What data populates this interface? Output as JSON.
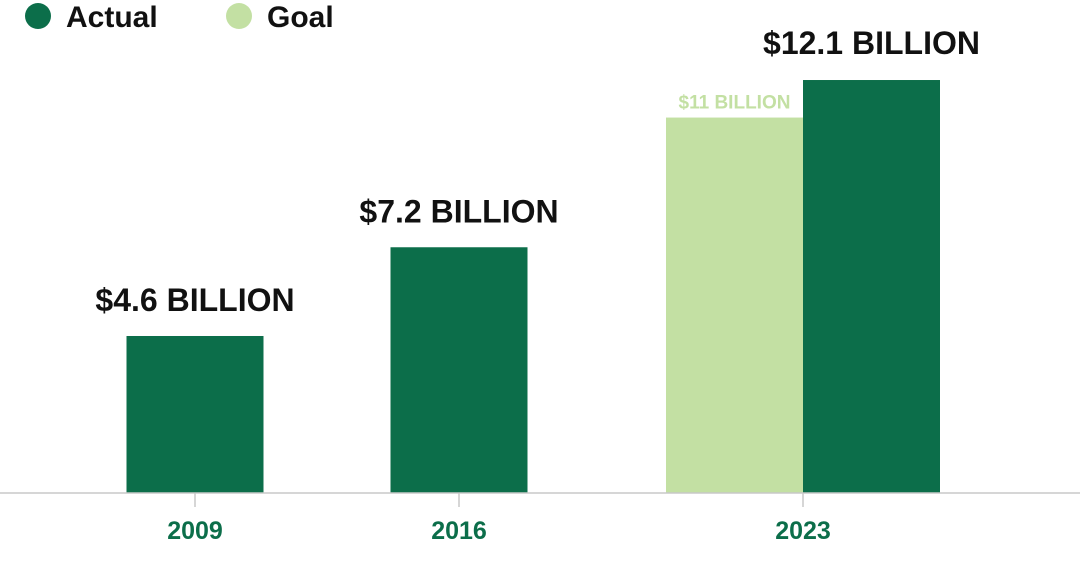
{
  "legend": {
    "actual_label": "Actual",
    "goal_label": "Goal"
  },
  "colors": {
    "actual": "#0c6e4a",
    "goal": "#c3e0a3",
    "tick_text": "#0c6e4a",
    "axis": "#c8c8c8"
  },
  "chart_data": {
    "type": "bar",
    "categories": [
      "2009",
      "2016",
      "2023"
    ],
    "series": [
      {
        "name": "Actual",
        "values": [
          4.6,
          7.2,
          12.1
        ],
        "labels": [
          "$4.6 BILLION",
          "$7.2 BILLION",
          "$12.1 BILLION"
        ]
      },
      {
        "name": "Goal",
        "values": [
          null,
          null,
          11
        ],
        "labels": [
          "",
          "",
          "$11 BILLION"
        ]
      }
    ],
    "ylim": [
      0,
      13
    ],
    "grid": false,
    "legend_position": "top-left"
  }
}
